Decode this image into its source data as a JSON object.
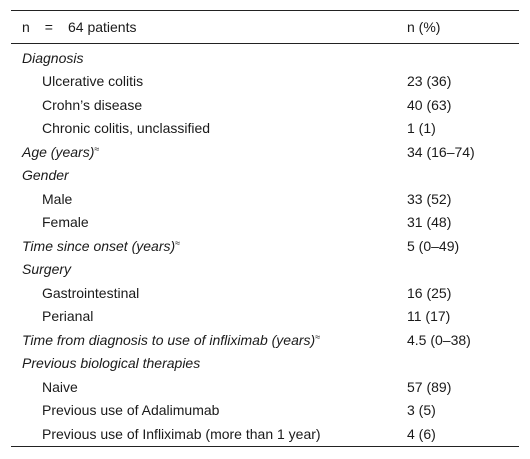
{
  "header": {
    "n_symbol": "n",
    "equals": "=",
    "patients": "64 patients",
    "value_col": "n (%)"
  },
  "rows": [
    {
      "label": "Diagnosis",
      "value": "",
      "type": "category"
    },
    {
      "label": "Ulcerative colitis",
      "value": "23 (36)",
      "type": "sub"
    },
    {
      "label": "Crohn’s disease",
      "value": "40 (63)",
      "type": "sub"
    },
    {
      "label": "Chronic colitis, unclassified",
      "value": "1 (1)",
      "type": "sub"
    },
    {
      "label": "Age (years)",
      "mark": "≈",
      "value": "34 (16–74)",
      "type": "category"
    },
    {
      "label": "Gender",
      "value": "",
      "type": "category"
    },
    {
      "label": "Male",
      "value": "33 (52)",
      "type": "sub"
    },
    {
      "label": "Female",
      "value": "31 (48)",
      "type": "sub"
    },
    {
      "label": "Time since onset (years)",
      "mark": "≈",
      "value": "5 (0–49)",
      "type": "category"
    },
    {
      "label": "Surgery",
      "value": "",
      "type": "category"
    },
    {
      "label": "Gastrointestinal",
      "value": "16 (25)",
      "type": "sub"
    },
    {
      "label": "Perianal",
      "value": "11 (17)",
      "type": "sub"
    },
    {
      "label": "Time from diagnosis to use of infliximab (years)",
      "mark": "≈",
      "value": "4.5 (0–38)",
      "type": "category"
    },
    {
      "label": "Previous biological therapies",
      "value": "",
      "type": "category"
    },
    {
      "label": "Naive",
      "value": "57 (89)",
      "type": "sub"
    },
    {
      "label": "Previous use of Adalimumab",
      "value": "3 (5)",
      "type": "sub"
    },
    {
      "label": "Previous use of Infliximab (more than 1 year)",
      "value": "4 (6)",
      "type": "sub"
    }
  ]
}
